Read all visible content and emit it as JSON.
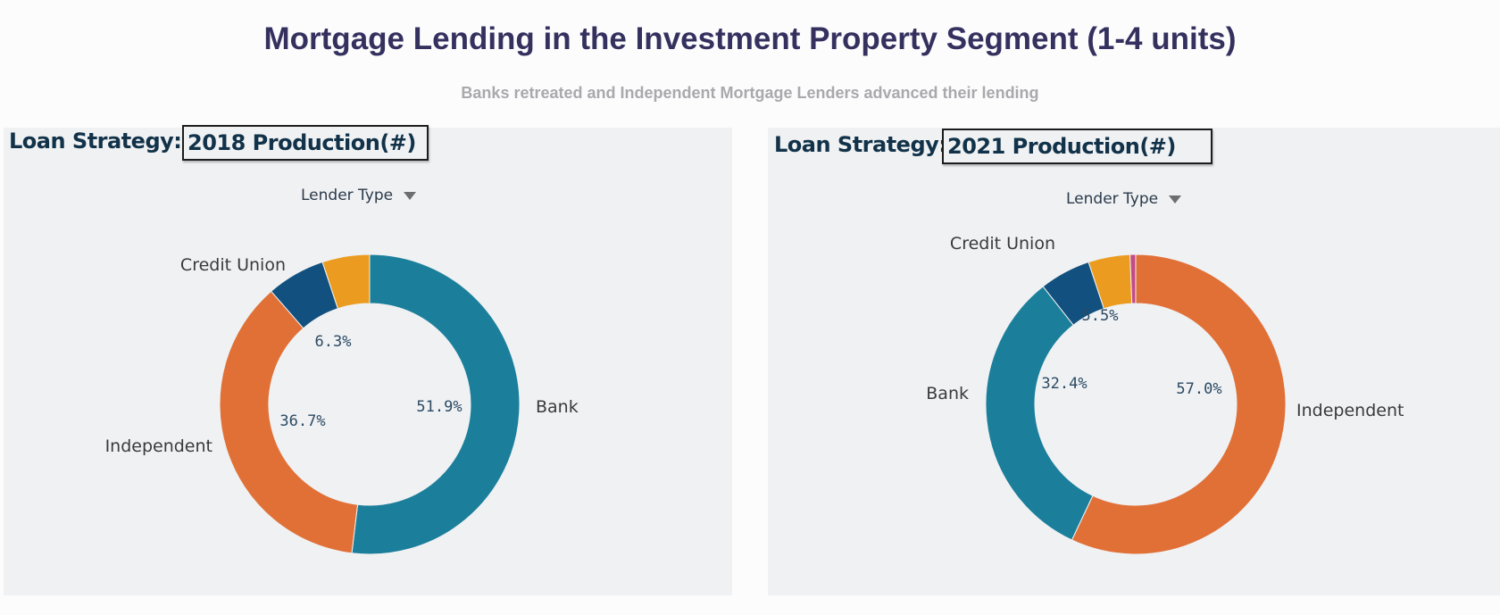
{
  "header": {
    "title": "Mortgage Lending in the Investment Property Segment (1-4 units)",
    "subtitle": "Banks retreated and Independent Mortgage Lenders advanced their lending"
  },
  "panels": [
    {
      "strategy_label": "Loan Strategy:",
      "production_label": "2018 Production(#)",
      "filter_label": "Lender Type"
    },
    {
      "strategy_label": "Loan Strategy:",
      "production_label": "2021 Production(#)",
      "filter_label": "Lender Type"
    }
  ],
  "colors": {
    "Bank": "#1b7f9b",
    "Independent": "#e17037",
    "Credit Union": "#11507f",
    "Other": "#eb9c20",
    "Other 2": "#c34b86"
  },
  "chart_data": [
    {
      "type": "pie",
      "donut": true,
      "title": "2018 Production(#)",
      "legend": "none",
      "slices": [
        {
          "name": "Bank",
          "label": "Bank",
          "value": 51.9,
          "pct_label": "51.9%"
        },
        {
          "name": "Independent",
          "label": "Independent",
          "value": 36.7,
          "pct_label": "36.7%"
        },
        {
          "name": "Credit Union",
          "label": "Credit Union",
          "value": 6.3,
          "pct_label": "6.3%"
        },
        {
          "name": "Other",
          "label": "",
          "value": 5.1,
          "pct_label": ""
        }
      ]
    },
    {
      "type": "pie",
      "donut": true,
      "title": "2021 Production(#)",
      "legend": "none",
      "slices": [
        {
          "name": "Independent",
          "label": "Independent",
          "value": 57.0,
          "pct_label": "57.0%"
        },
        {
          "name": "Bank",
          "label": "Bank",
          "value": 32.4,
          "pct_label": "32.4%"
        },
        {
          "name": "Credit Union",
          "label": "Credit Union",
          "value": 5.5,
          "pct_label": "5.5%"
        },
        {
          "name": "Other",
          "label": "",
          "value": 4.5,
          "pct_label": ""
        },
        {
          "name": "Other 2",
          "label": "",
          "value": 0.6,
          "pct_label": ""
        }
      ]
    }
  ]
}
